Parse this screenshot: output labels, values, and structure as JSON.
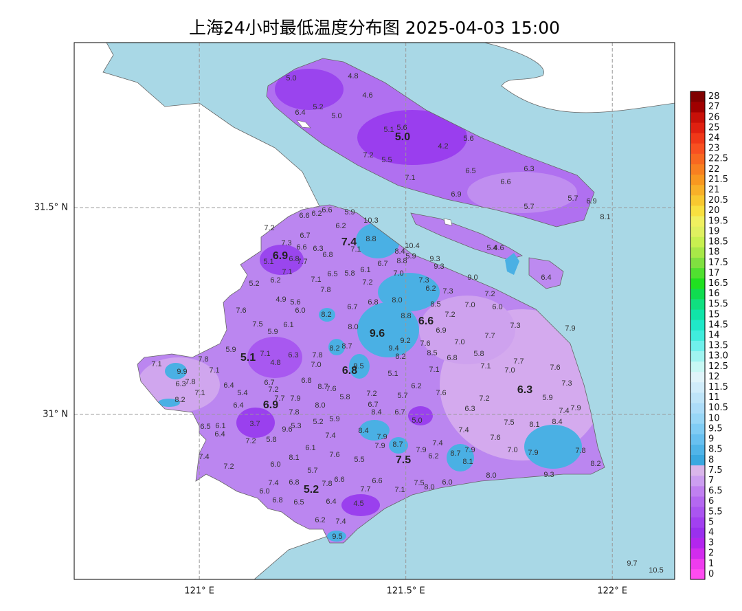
{
  "title": "上海24小时最低温度分布图 2025-04-03 15:00",
  "map": {
    "xlim": [
      120.697,
      122.151
    ],
    "ylim": [
      30.601,
      31.899
    ],
    "xticks": [
      {
        "value": 121,
        "label": "121° E"
      },
      {
        "value": 121.5,
        "label": "121.5° E"
      },
      {
        "value": 122,
        "label": "122° E"
      }
    ],
    "yticks": [
      {
        "value": 31,
        "label": "31° N"
      },
      {
        "value": 31.5,
        "label": "31.5° N"
      }
    ],
    "grid": true
  },
  "colorbar": {
    "levels": [
      0,
      1,
      2,
      3,
      4,
      5,
      5.5,
      6,
      6.5,
      7,
      7.5,
      8,
      8.5,
      9,
      9.5,
      10,
      10.5,
      11,
      11.5,
      12,
      12.5,
      {
        "value": 13,
        "label": "13.0"
      },
      13.5,
      14,
      14.5,
      15,
      15.5,
      16,
      16.5,
      17,
      17.5,
      18,
      18.5,
      19,
      19.5,
      20,
      20.5,
      21,
      21.5,
      22,
      22.5,
      23,
      24,
      25,
      26,
      27,
      28
    ],
    "colors": [
      "#ff4cf0",
      "#ee3cee",
      "#d22cee",
      "#b326ee",
      "#9a30ee",
      "#a240f0",
      "#aa55f0",
      "#b468f0",
      "#c080f0",
      "#cc9ef0",
      "#dab6ea",
      "#3aa8e0",
      "#50b4e8",
      "#68c0f0",
      "#80ccf4",
      "#98d6f6",
      "#acdcf8",
      "#bee4f8",
      "#d0ecfa",
      "#e0f4fa",
      "#c8f8f4",
      "#a0f4f0",
      "#70f0ec",
      "#40ecdc",
      "#20e8c8",
      "#10e4a8",
      "#10e080",
      "#10dc50",
      "#20e020",
      "#50e030",
      "#80e040",
      "#a8e848",
      "#c8f050",
      "#e0f060",
      "#f0f060",
      "#f8e040",
      "#f8c830",
      "#f8b028",
      "#f89820",
      "#f88020",
      "#f86820",
      "#f85020",
      "#f03818",
      "#e02010",
      "#c81008",
      "#a00000",
      "#800000"
    ]
  },
  "district_values": [
    "5.0",
    "7.4",
    "6.9",
    "6.6",
    "9.6",
    "5.1",
    "6.8",
    "6.3",
    "6.9",
    "7.5",
    "5.2"
  ],
  "station_values": [
    "5.0",
    "4.8",
    "4.6",
    "6.4",
    "5.2",
    "5.0",
    "5.1",
    "5.6",
    "4.2",
    "5.6",
    "7.2",
    "5.5",
    "6.5",
    "6.3",
    "7.1",
    "6.6",
    "6.9",
    "5.7",
    "6.9",
    "5.7",
    "8.1",
    "5.9",
    "6.6",
    "6.2",
    "6.6",
    "10.3",
    "6.2",
    "7.2",
    "6.7",
    "8.8",
    "7.3",
    "6.6",
    "6.3",
    "7.1",
    "10.4",
    "5.4",
    "4.6",
    "8.4",
    "5.9",
    "6.8",
    "7.7",
    "6.8",
    "8.8",
    "9.3",
    "9.3",
    "5.1",
    "7.1",
    "6.5",
    "5.8",
    "6.7",
    "6.1",
    "7.0",
    "9.0",
    "6.4",
    "6.2",
    "7.1",
    "7.2",
    "7.3",
    "5.2",
    "7.8",
    "6.2",
    "7.3",
    "7.2",
    "4.9",
    "5.6",
    "8.0",
    "8.5",
    "6.8",
    "7.0",
    "6.0",
    "7.6",
    "6.0",
    "6.7",
    "8.2",
    "8.8",
    "7.2",
    "7.5",
    "6.1",
    "8.0",
    "6.9",
    "7.3",
    "7.9",
    "5.9",
    "7.7",
    "7.0",
    "9.2",
    "7.6",
    "9.4",
    "5.9",
    "8.2",
    "8.7",
    "5.8",
    "8.5",
    "7.8",
    "8.2",
    "6.8",
    "7.7",
    "7.1",
    "7.8",
    "7.1",
    "4.8",
    "6.3",
    "7.0",
    "7.1",
    "7.0",
    "7.6",
    "9.9",
    "7.1",
    "9.5",
    "5.1",
    "7.1",
    "6.3",
    "7.8",
    "6.7",
    "6.8",
    "7.3",
    "6.4",
    "7.2",
    "8.7",
    "7.6",
    "6.2",
    "5.9",
    "7.1",
    "5.4",
    "7.7",
    "7.9",
    "5.8",
    "7.2",
    "5.7",
    "7.6",
    "7.2",
    "8.2",
    "6.4",
    "8.0",
    "6.7",
    "6.3",
    "7.4",
    "7.9",
    "7.8",
    "8.4",
    "6.7",
    "5.0",
    "5.2",
    "5.9",
    "7.5",
    "8.1",
    "8.4",
    "6.5",
    "6.1",
    "6.4",
    "9.6",
    "5.3",
    "8.4",
    "7.4",
    "7.4",
    "7.9",
    "7.6",
    "7.2",
    "5.8",
    "7.9",
    "8.7",
    "7.4",
    "6.1",
    "7.9",
    "8.7",
    "7.9",
    "7.0",
    "7.9",
    "7.8",
    "7.4",
    "8.1",
    "7.6",
    "5.5",
    "6.2",
    "8.1",
    "8.2",
    "7.2",
    "6.0",
    "5.7",
    "8.0",
    "9.3",
    "7.4",
    "6.8",
    "7.8",
    "6.6",
    "6.6",
    "7.5",
    "8.0",
    "6.0",
    "6.0",
    "7.7",
    "7.1",
    "6.8",
    "6.5",
    "6.4",
    "4.5",
    "6.2",
    "7.4",
    "9.5",
    "3.7",
    "9.7",
    "10.5"
  ]
}
